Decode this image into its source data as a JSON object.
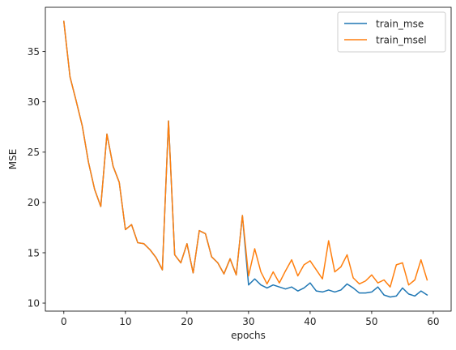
{
  "chart_data": {
    "type": "line",
    "xlabel": "epochs",
    "ylabel": "MSE",
    "xlim": [
      -3,
      62.9
    ],
    "ylim": [
      9.2,
      39.4
    ],
    "xticks": [
      0,
      10,
      20,
      30,
      40,
      50,
      60
    ],
    "yticks": [
      10,
      15,
      20,
      25,
      30,
      35
    ],
    "grid": false,
    "legend_position": "top-right",
    "x": [
      0,
      1,
      2,
      3,
      4,
      5,
      6,
      7,
      8,
      9,
      10,
      11,
      12,
      13,
      14,
      15,
      16,
      17,
      18,
      19,
      20,
      21,
      22,
      23,
      24,
      25,
      26,
      27,
      28,
      29,
      30,
      31,
      32,
      33,
      34,
      35,
      36,
      37,
      38,
      39,
      40,
      41,
      42,
      43,
      44,
      45,
      46,
      47,
      48,
      49,
      50,
      51,
      52,
      53,
      54,
      55,
      56,
      57,
      58,
      59
    ],
    "series": [
      {
        "name": "train_mse",
        "color": "#1f77b4",
        "values": [
          38.0,
          32.5,
          30.1,
          27.6,
          24.0,
          21.3,
          19.6,
          26.8,
          23.6,
          22.0,
          17.3,
          17.8,
          16.0,
          15.9,
          15.3,
          14.5,
          13.3,
          28.1,
          14.8,
          14.0,
          15.9,
          13.0,
          17.2,
          16.9,
          14.6,
          14.0,
          12.9,
          14.4,
          12.8,
          18.7,
          11.8,
          12.4,
          11.8,
          11.5,
          11.8,
          11.6,
          11.4,
          11.6,
          11.2,
          11.5,
          12.0,
          11.2,
          11.1,
          11.3,
          11.1,
          11.3,
          11.9,
          11.5,
          11.0,
          11.0,
          11.1,
          11.6,
          10.8,
          10.6,
          10.7,
          11.5,
          10.9,
          10.7,
          11.2,
          10.8
        ]
      },
      {
        "name": "train_msel",
        "color": "#ff7f0e",
        "values": [
          38.0,
          32.5,
          30.1,
          27.6,
          24.0,
          21.3,
          19.6,
          26.8,
          23.6,
          22.0,
          17.3,
          17.8,
          16.0,
          15.9,
          15.3,
          14.5,
          13.3,
          28.1,
          14.8,
          14.0,
          15.9,
          13.0,
          17.2,
          16.9,
          14.6,
          14.0,
          12.9,
          14.4,
          12.8,
          18.7,
          12.7,
          15.4,
          13.1,
          11.9,
          13.1,
          12.0,
          13.2,
          14.3,
          12.7,
          13.8,
          14.2,
          13.3,
          12.4,
          16.2,
          13.1,
          13.6,
          14.8,
          12.5,
          11.9,
          12.2,
          12.8,
          12.0,
          12.3,
          11.6,
          13.8,
          14.0,
          11.8,
          12.3,
          14.3,
          12.3
        ]
      }
    ]
  }
}
